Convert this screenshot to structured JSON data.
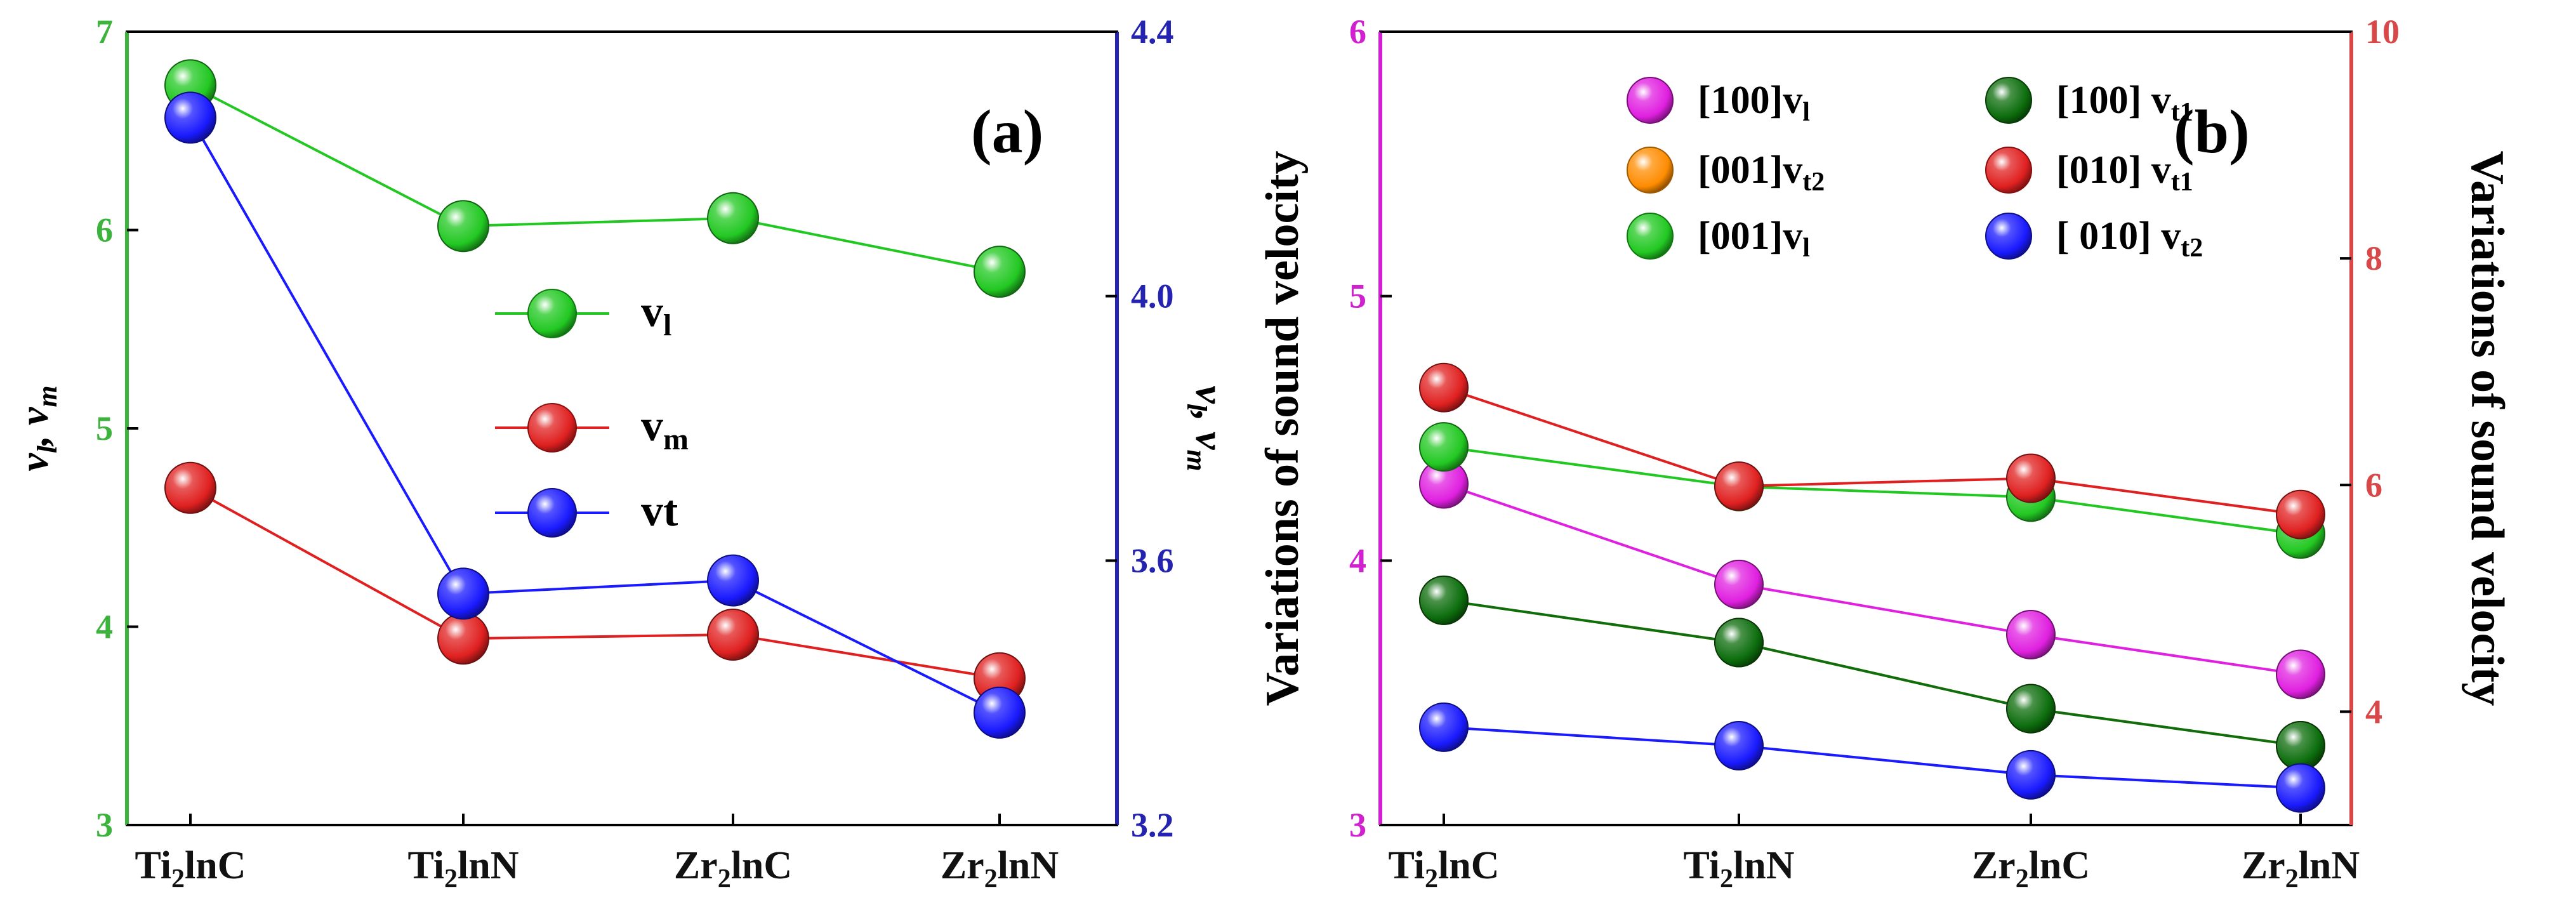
{
  "colors": {
    "green": "#22c822",
    "red": "#e02020",
    "blue": "#1a1aff",
    "magenta": "#e020e0",
    "orange": "#ff8c00",
    "darkgreen": "#0d6e0d",
    "axis_a_left": "#3cb33c",
    "axis_a_right": "#2424b0",
    "axis_b_left": "#d020d0",
    "axis_b_right": "#d84848"
  },
  "chart_data": [
    {
      "type": "line",
      "panel_label": "(a)",
      "categories": [
        "Ti2lnC",
        "Ti2lnN",
        "Zr2lnC",
        "Zr2lnN"
      ],
      "category_labels": [
        {
          "pre": "Ti",
          "sub": "2",
          "post": "lnC"
        },
        {
          "pre": "Ti",
          "sub": "2",
          "post": "lnN"
        },
        {
          "pre": "Zr",
          "sub": "2",
          "post": "lnC"
        },
        {
          "pre": "Zr",
          "sub": "2",
          "post": "lnN"
        }
      ],
      "ylabel_left": {
        "a": "v",
        "a_sub": "l",
        "b": ", v",
        "b_sub": "m"
      },
      "ylabel_right": {
        "a": "v",
        "a_sub": "l",
        "b": ", v",
        "b_sub": "m"
      },
      "ylim_left": [
        3,
        7
      ],
      "yticks_left": [
        "3",
        "4",
        "5",
        "6",
        "7"
      ],
      "ylim_right": [
        3.2,
        4.4
      ],
      "yticks_right": [
        "3.2",
        "3.6",
        "4.0",
        "4.4"
      ],
      "series": [
        {
          "name": "v_l",
          "label": "v",
          "label_sub": "l",
          "axis": "left",
          "color": "green",
          "values": [
            6.73,
            6.02,
            6.06,
            5.79
          ]
        },
        {
          "name": "v_m",
          "label": "v",
          "label_sub": "m",
          "axis": "left",
          "color": "red",
          "values": [
            4.7,
            3.94,
            3.96,
            3.74
          ]
        },
        {
          "name": "vt",
          "label": "vt",
          "label_sub": "",
          "axis": "right",
          "color": "blue",
          "values": [
            4.27,
            3.55,
            3.57,
            3.37
          ]
        }
      ]
    },
    {
      "type": "line",
      "panel_label": "(b)",
      "categories": [
        "Ti2lnC",
        "Ti2lnN",
        "Zr2lnC",
        "Zr2lnN"
      ],
      "category_labels": [
        {
          "pre": "Ti",
          "sub": "2",
          "post": "lnC"
        },
        {
          "pre": "Ti",
          "sub": "2",
          "post": "lnN"
        },
        {
          "pre": "Zr",
          "sub": "2",
          "post": "lnC"
        },
        {
          "pre": "Zr",
          "sub": "2",
          "post": "lnN"
        }
      ],
      "ylabel_left": "Variations of sound velocity",
      "ylabel_right": "Variations of sound velocity",
      "ylim_left": [
        3,
        6
      ],
      "yticks_left": [
        "3",
        "4",
        "5",
        "6"
      ],
      "ylim_right": [
        3.0,
        10
      ],
      "yticks_right": [
        "4",
        "6",
        "8",
        "10"
      ],
      "series": [
        {
          "name": "[100]v_l",
          "label": "[100]v",
          "label_sub": "l",
          "axis": "left",
          "color": "magenta",
          "values": [
            4.29,
            3.91,
            3.72,
            3.57
          ]
        },
        {
          "name": "[001]v_t2",
          "label": "[001]v",
          "label_sub": "t2",
          "axis": "left",
          "color": "orange",
          "values": [
            3.85,
            3.69,
            3.44,
            3.3
          ]
        },
        {
          "name": "[001]v_l",
          "label": "[001]v",
          "label_sub": "l",
          "axis": "left",
          "color": "green",
          "values": [
            4.43,
            4.28,
            4.24,
            4.1
          ]
        },
        {
          "name": "[100] v_t1",
          "label": "[100] v",
          "label_sub": "t1",
          "axis": "left",
          "color": "darkgreen",
          "values": [
            3.85,
            3.69,
            3.44,
            3.3
          ]
        },
        {
          "name": "[010] v_t1",
          "label": "[010] v",
          "label_sub": "t1",
          "axis": "right",
          "color": "red",
          "values": [
            6.86,
            5.99,
            6.06,
            5.74
          ]
        },
        {
          "name": "[ 010] v_t2",
          "label": "[ 010] v",
          "label_sub": "t2",
          "axis": "left",
          "color": "blue",
          "values": [
            3.37,
            3.3,
            3.19,
            3.14
          ]
        }
      ]
    }
  ]
}
